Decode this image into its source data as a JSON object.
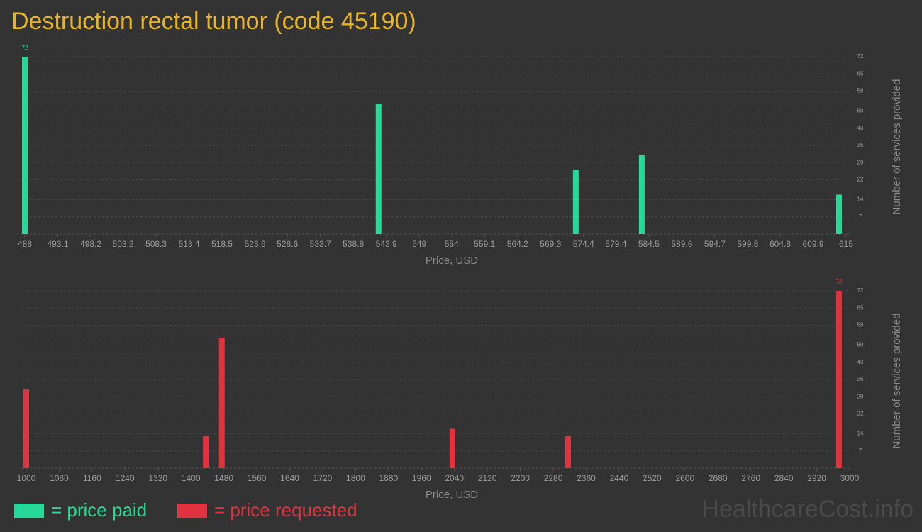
{
  "title": "Destruction rectal tumor (code 45190)",
  "watermark": "HealthcareCost.info",
  "chart_data": [
    {
      "type": "bar",
      "x": [
        488,
        542.7,
        573.2,
        583.4,
        613.9
      ],
      "series": [
        {
          "name": "= price paid",
          "color": "#26d99a",
          "values": [
            72,
            53,
            26,
            32,
            16
          ]
        }
      ],
      "xlim": [
        488,
        615
      ],
      "xticks": [
        488,
        493.1,
        498.2,
        503.2,
        508.3,
        513.4,
        518.5,
        523.6,
        528.6,
        533.7,
        538.8,
        543.9,
        549,
        554,
        559.1,
        564.2,
        569.3,
        574.4,
        579.4,
        584.5,
        589.6,
        594.7,
        599.8,
        604.8,
        609.9,
        615
      ],
      "ylim": [
        0,
        72
      ],
      "yticks": [
        7,
        14,
        22,
        29,
        36,
        43,
        50,
        58,
        65,
        72
      ],
      "x_label": "Price, USD",
      "y_label": "Number of services provided",
      "grid": true
    },
    {
      "type": "bar",
      "x": [
        1000,
        1436,
        1475,
        2035,
        2316,
        2974
      ],
      "series": [
        {
          "name": "= price requested",
          "color": "#e0323f",
          "values": [
            32,
            13,
            53,
            16,
            13,
            72
          ]
        }
      ],
      "xlim": [
        1000,
        3000
      ],
      "xticks": [
        1000,
        1080,
        1160,
        1240,
        1320,
        1400,
        1480,
        1560,
        1640,
        1720,
        1800,
        1880,
        1960,
        2040,
        2120,
        2200,
        2280,
        2360,
        2440,
        2520,
        2600,
        2680,
        2760,
        2840,
        2920,
        3000
      ],
      "ylim": [
        0,
        72
      ],
      "yticks": [
        7,
        14,
        22,
        29,
        36,
        43,
        50,
        58,
        65,
        72
      ],
      "x_label": "Price, USD",
      "y_label": "Number of services provided",
      "grid": true
    }
  ]
}
